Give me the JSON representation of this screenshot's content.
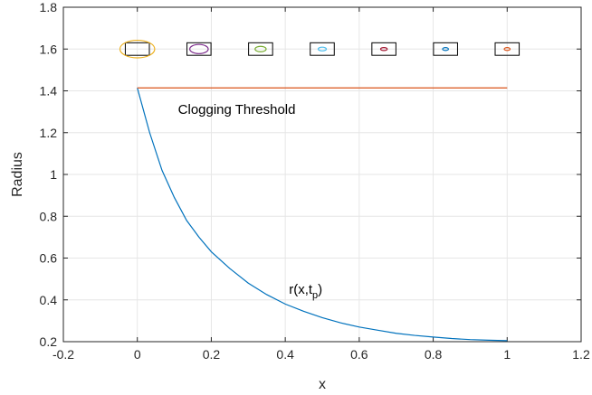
{
  "chart_data": {
    "type": "line",
    "xlabel": "x",
    "ylabel": "Radius",
    "xlim": [
      -0.2,
      1.2
    ],
    "ylim": [
      0.2,
      1.8
    ],
    "xticks": [
      "-0.2",
      "0",
      "0.2",
      "0.4",
      "0.6",
      "0.8",
      "1",
      "1.2"
    ],
    "yticks": [
      "0.2",
      "0.4",
      "0.6",
      "0.8",
      "1",
      "1.2",
      "1.4",
      "1.6",
      "1.8"
    ],
    "grid": true,
    "series": [
      {
        "color": "#0072BD",
        "x": [
          0,
          0.0333,
          0.0667,
          0.1,
          0.1333,
          0.1667,
          0.2,
          0.25,
          0.3,
          0.35,
          0.4,
          0.45,
          0.5,
          0.55,
          0.6,
          0.65,
          0.7,
          0.75,
          0.8,
          0.85,
          0.9,
          0.95,
          1.0
        ],
        "y": [
          1.414,
          1.2,
          1.02,
          0.89,
          0.78,
          0.7,
          0.63,
          0.55,
          0.48,
          0.425,
          0.38,
          0.345,
          0.315,
          0.29,
          0.27,
          0.255,
          0.24,
          0.23,
          0.222,
          0.215,
          0.21,
          0.207,
          0.205
        ]
      },
      {
        "color": "#D95319",
        "x": [
          0,
          1
        ],
        "y": [
          1.414,
          1.414
        ]
      }
    ],
    "annotations": [
      {
        "text": "Clogging Threshold",
        "x": 0.11,
        "y": 1.29
      },
      {
        "text_main": "r(x,t",
        "text_sub": "p",
        "text_end": ")",
        "x": 0.41,
        "y": 0.43
      }
    ],
    "pore_markers": {
      "y": 1.6,
      "box_w": 0.065,
      "box_h": 0.06,
      "items": [
        {
          "x": 0.0,
          "rx": 0.047,
          "ry": 0.042,
          "color": "#EDB120"
        },
        {
          "x": 0.1667,
          "rx": 0.025,
          "ry": 0.022,
          "color": "#7E2F8E"
        },
        {
          "x": 0.3333,
          "rx": 0.015,
          "ry": 0.013,
          "color": "#77AC30"
        },
        {
          "x": 0.5,
          "rx": 0.011,
          "ry": 0.009,
          "color": "#4DBEEE"
        },
        {
          "x": 0.6667,
          "rx": 0.009,
          "ry": 0.007,
          "color": "#A2142F"
        },
        {
          "x": 0.8333,
          "rx": 0.008,
          "ry": 0.007,
          "color": "#0072BD"
        },
        {
          "x": 1.0,
          "rx": 0.008,
          "ry": 0.007,
          "color": "#D95319"
        }
      ]
    }
  }
}
